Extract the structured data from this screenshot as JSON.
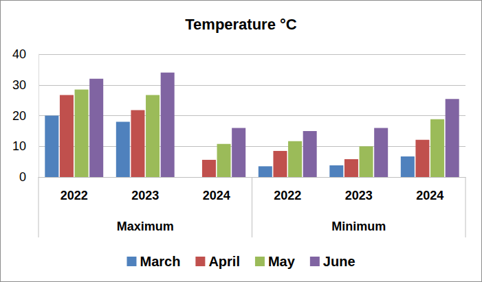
{
  "chart_data": {
    "type": "bar",
    "title": "Temperature °C",
    "categories": [
      "2022",
      "2023",
      "2024",
      "2022",
      "2023",
      "2024"
    ],
    "groups": [
      {
        "label": "Maximum",
        "size": 3
      },
      {
        "label": "Minimum",
        "size": 3
      }
    ],
    "series": [
      {
        "name": "March",
        "color": "#4f81bd",
        "values": [
          20,
          18,
          null,
          3.5,
          3.8,
          6.7
        ]
      },
      {
        "name": "April",
        "color": "#c0504d",
        "values": [
          26.7,
          21.8,
          5.6,
          8.5,
          5.8,
          12.1
        ]
      },
      {
        "name": "May",
        "color": "#9bbb59",
        "values": [
          28.5,
          26.7,
          10.8,
          11.7,
          10,
          18.8
        ]
      },
      {
        "name": "June",
        "color": "#8064a2",
        "values": [
          32,
          34,
          16,
          15,
          16,
          25.4
        ]
      }
    ],
    "ylim": [
      0,
      40
    ],
    "yticks": [
      0,
      10,
      20,
      30,
      40
    ],
    "grid": true,
    "legend": "bottom"
  }
}
